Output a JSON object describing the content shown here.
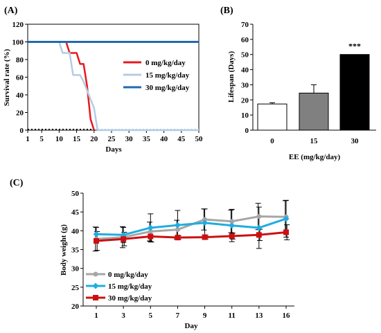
{
  "chart_data": [
    {
      "panel_label": "(A)",
      "type": "line",
      "title": "",
      "xlabel": "Days",
      "ylabel": "Survival rate (%)",
      "xlim": [
        1,
        50
      ],
      "ylim": [
        0,
        120
      ],
      "x_ticks": [
        "1",
        "5",
        "10",
        "15",
        "20",
        "25",
        "30",
        "35",
        "40",
        "45",
        "50"
      ],
      "y_ticks": [
        "0",
        "20",
        "40",
        "60",
        "80",
        "100",
        "120"
      ],
      "legend_position": "right",
      "series": [
        {
          "name": "0 mg/kg/day",
          "color": "#e8191e",
          "x": [
            1,
            12,
            13,
            14,
            15,
            16,
            17,
            18,
            19,
            20
          ],
          "y": [
            100,
            100,
            87.5,
            87.5,
            87.5,
            75,
            75,
            50,
            12.5,
            0
          ]
        },
        {
          "name": "15 mg/kg/day",
          "color": "#b4cce4",
          "x": [
            1,
            10,
            11,
            12,
            13,
            14,
            15,
            16,
            17,
            18,
            19,
            20,
            21,
            50
          ],
          "y": [
            100,
            100,
            87.5,
            87.5,
            87.5,
            62.5,
            62.5,
            62.5,
            55,
            45,
            35,
            25,
            0,
            0
          ]
        },
        {
          "name": "30 mg/kg/day",
          "color": "#1f6ab0",
          "x": [
            1,
            50
          ],
          "y": [
            100,
            100
          ]
        }
      ]
    },
    {
      "panel_label": "(B)",
      "type": "bar",
      "title": "",
      "xlabel": "EE (mg/kg/day)",
      "ylabel": "Lifespan (Days)",
      "ylim": [
        0,
        70
      ],
      "y_ticks": [
        "0",
        "10",
        "20",
        "30",
        "40",
        "50",
        "60",
        "70"
      ],
      "categories": [
        "0",
        "15",
        "30"
      ],
      "values": [
        17.3,
        24.5,
        50
      ],
      "errors": [
        0.8,
        5.5,
        0
      ],
      "bar_colors": [
        "#ffffff",
        "#808080",
        "#000000"
      ],
      "annotations": [
        {
          "category": "30",
          "text": "***"
        }
      ]
    },
    {
      "panel_label": "(C)",
      "type": "line",
      "title": "",
      "xlabel": "Day",
      "ylabel": "Body weight (g)",
      "ylim": [
        20,
        50
      ],
      "y_ticks": [
        "20",
        "25",
        "30",
        "35",
        "40",
        "45",
        "50"
      ],
      "categories": [
        "1",
        "3",
        "5",
        "7",
        "9",
        "11",
        "13",
        "16"
      ],
      "legend_position": "bottom-left",
      "series": [
        {
          "name": "0 mg/kg/day",
          "color": "#a6a6a6",
          "marker": "circle",
          "values": [
            37.8,
            38.3,
            39.8,
            40.3,
            43.0,
            42.5,
            43.8,
            43.7
          ],
          "errors": [
            3.2,
            2.8,
            2.5,
            2.5,
            2.8,
            3.0,
            3.5,
            4.3
          ]
        },
        {
          "name": "15 mg/kg/day",
          "color": "#1fade0",
          "marker": "diamond",
          "values": [
            39.1,
            38.9,
            40.8,
            41.5,
            42.1,
            41.4,
            40.8,
            43.2
          ],
          "errors": [
            1.8,
            2.0,
            3.7,
            3.9,
            3.7,
            4.3,
            5.5,
            4.9
          ]
        },
        {
          "name": "30 mg/kg/day",
          "color": "#cc1010",
          "marker": "square",
          "values": [
            37.3,
            37.8,
            38.5,
            38.2,
            38.3,
            38.6,
            38.9,
            39.6
          ],
          "errors": [
            2.5,
            1.8,
            1.5,
            0.5,
            0.5,
            0.8,
            1.5,
            2.0
          ]
        }
      ]
    }
  ]
}
